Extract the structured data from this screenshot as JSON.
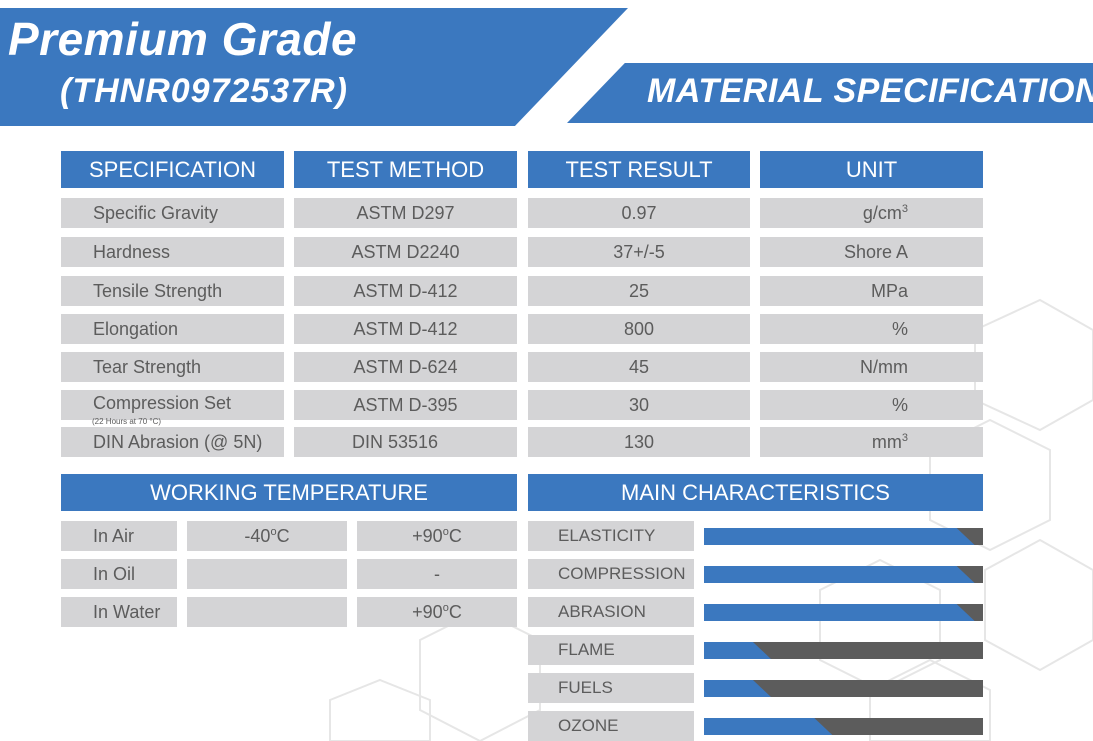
{
  "header": {
    "title_line1": "Premium Grade",
    "title_line2": "(THNR0972537R)",
    "section_title": "MATERIAL SPECIFICATION"
  },
  "spec_table": {
    "columns": [
      "SPECIFICATION",
      "TEST METHOD",
      "TEST RESULT",
      "UNIT"
    ],
    "rows": [
      {
        "spec": "Specific Gravity",
        "method": "ASTM D297",
        "result": "0.97",
        "unit": "g/cm",
        "unit_sup": "3"
      },
      {
        "spec": "Hardness",
        "method": "ASTM D2240",
        "result": "37+/-5",
        "unit": "Shore A",
        "unit_sup": ""
      },
      {
        "spec": "Tensile Strength",
        "method": "ASTM D-412",
        "result": "25",
        "unit": "MPa",
        "unit_sup": ""
      },
      {
        "spec": "Elongation",
        "method": "ASTM D-412",
        "result": "800",
        "unit": "%",
        "unit_sup": ""
      },
      {
        "spec": "Tear Strength",
        "method": "ASTM D-624",
        "result": "45",
        "unit": "N/mm",
        "unit_sup": ""
      },
      {
        "spec": "Compression Set",
        "method": "ASTM D-395",
        "result": "30",
        "unit": "%",
        "unit_sup": ""
      },
      {
        "spec": "DIN Abrasion (@ 5N)",
        "method": "DIN 53516",
        "result": "130",
        "unit": "mm",
        "unit_sup": "3"
      }
    ],
    "compression_note": "(22 Hours at 70 °C)"
  },
  "working_temperature": {
    "title": "WORKING TEMPERATURE",
    "degree_symbol": "o",
    "rows": [
      {
        "medium": "In Air",
        "min": "-40",
        "min_unit": "C",
        "max": "+90",
        "max_unit": "C"
      },
      {
        "medium": "In Oil",
        "min": "",
        "min_unit": "",
        "max": "-",
        "max_unit": ""
      },
      {
        "medium": "In Water",
        "min": "",
        "min_unit": "",
        "max": "+90",
        "max_unit": "C"
      }
    ]
  },
  "main_characteristics": {
    "title": "MAIN CHARACTERISTICS",
    "bar_color": "#3b78bf",
    "track_color": "#5c5c5c",
    "items": [
      {
        "label": "ELASTICITY",
        "level": 0.97
      },
      {
        "label": "COMPRESSION",
        "level": 0.97
      },
      {
        "label": "ABRASION",
        "level": 0.97
      },
      {
        "label": "FLAME",
        "level": 0.24
      },
      {
        "label": "FUELS",
        "level": 0.24
      },
      {
        "label": "OZONE",
        "level": 0.46
      }
    ]
  }
}
